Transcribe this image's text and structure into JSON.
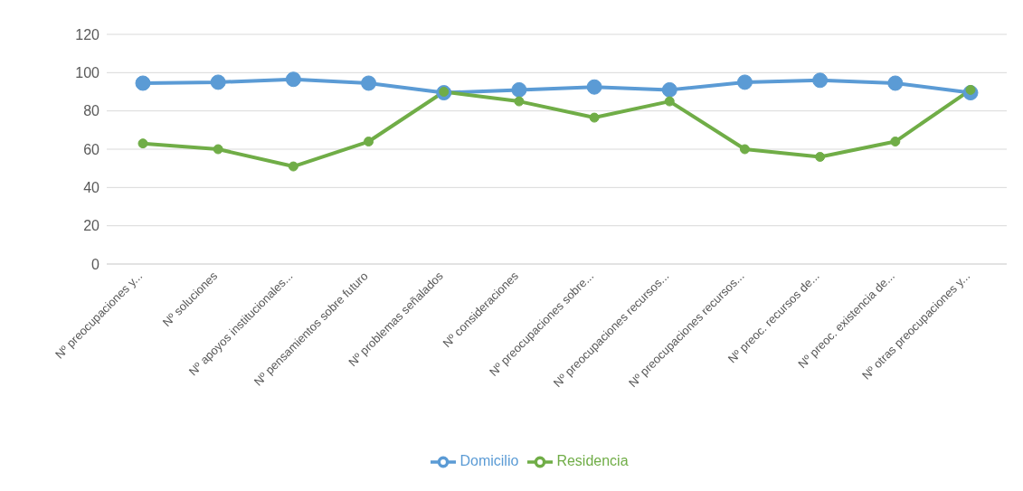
{
  "chart_data": {
    "type": "line",
    "categories": [
      "Nº preocupaciones y...",
      "Nº soluciones",
      "Nº apoyos institucionales...",
      "Nº pensamientos sobre futuro",
      "Nº problemas señalados",
      "Nº consideraciones",
      "Nº preocupaciones sobre...",
      "Nº preocupaciones recursos...",
      "Nº preocupaciones recursos...",
      "Nº preoc. recursos de...",
      "Nº preoc. existencia de...",
      "Nº otras preocupaciones y..."
    ],
    "series": [
      {
        "name": "Domicilio",
        "color": "#5b9bd5",
        "values": [
          94.5,
          95,
          96.5,
          94.5,
          89.5,
          91,
          92.5,
          91,
          95,
          96,
          94.5,
          89.5
        ]
      },
      {
        "name": "Residencia",
        "color": "#70ad47",
        "values": [
          63,
          60,
          51,
          64,
          90,
          85,
          76.5,
          85,
          60,
          56,
          64,
          91
        ]
      }
    ],
    "ylim": [
      0,
      120
    ],
    "yticks": [
      0,
      20,
      40,
      60,
      80,
      100,
      120
    ],
    "grid": "y",
    "legend": "bottom",
    "marker": "circle",
    "line_style": "solid"
  }
}
